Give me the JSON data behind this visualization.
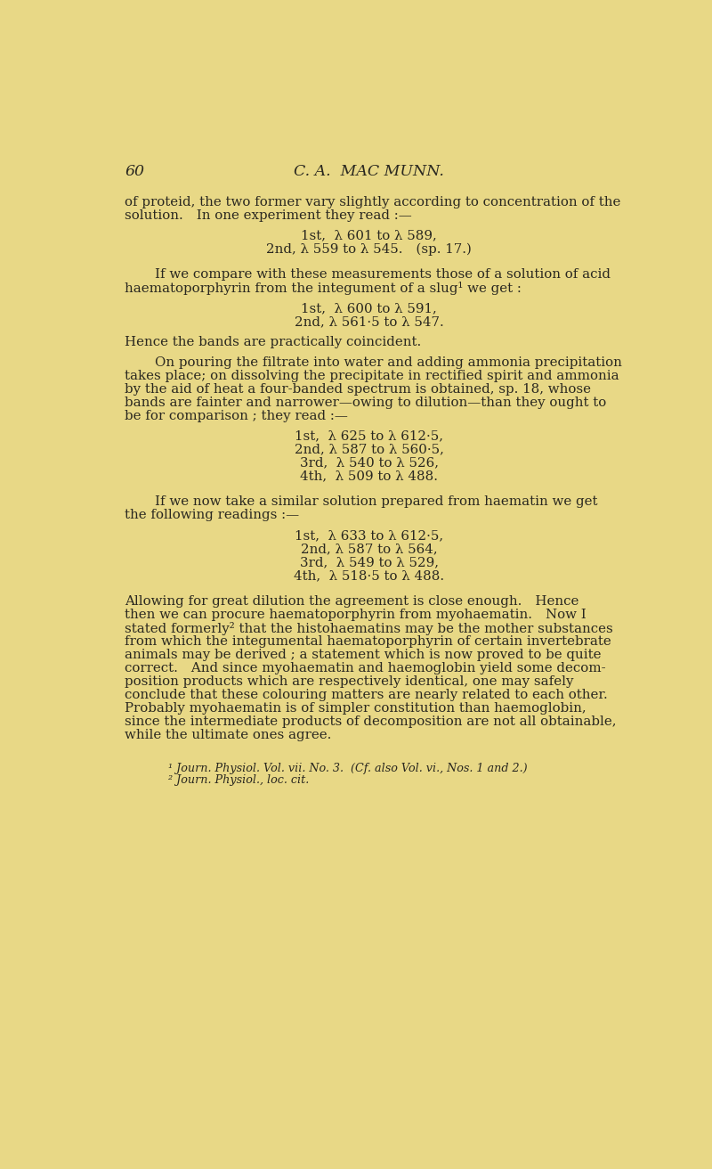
{
  "background_color": "#e8d886",
  "text_color": "#2a2820",
  "page_number": "60",
  "header": "C. A.  MAC MUNN.",
  "font_size_body": 10.8,
  "font_size_header": 12.5,
  "font_size_footnote": 9.2,
  "lines": [
    {
      "type": "header_gap"
    },
    {
      "type": "body_first",
      "text": "of proteid, the two former vary slightly according to concentration of the"
    },
    {
      "type": "body",
      "text": "solution. In one experiment they read :—"
    },
    {
      "type": "gap_small"
    },
    {
      "type": "centered",
      "text": "1st,  λ 601 to λ 589,"
    },
    {
      "type": "centered",
      "text": "2nd, λ 559 to λ 545. (sp. 17.)"
    },
    {
      "type": "gap_medium"
    },
    {
      "type": "body_indent",
      "text": "If we compare with these measurements those of a solution of acid"
    },
    {
      "type": "body",
      "text": "haematoporphyrin from the integument of a slug¹ we get :"
    },
    {
      "type": "gap_small"
    },
    {
      "type": "centered",
      "text": "1st,  λ 600 to λ 591,"
    },
    {
      "type": "centered",
      "text": "2nd, λ 561·5 to λ 547."
    },
    {
      "type": "gap_small"
    },
    {
      "type": "body",
      "text": "Hence the bands are practically coincident."
    },
    {
      "type": "gap_small"
    },
    {
      "type": "body_indent",
      "text": "On pouring the filtrate into water and adding ammonia precipitation"
    },
    {
      "type": "body",
      "text": "takes place; on dissolving the precipitate in rectified spirit and ammonia"
    },
    {
      "type": "body",
      "text": "by the aid of heat a four-banded spectrum is obtained, sp. 18, whose"
    },
    {
      "type": "body",
      "text": "bands are fainter and narrower—owing to dilution—than they ought to"
    },
    {
      "type": "body",
      "text": "be for comparison ; they read :—"
    },
    {
      "type": "gap_small"
    },
    {
      "type": "centered",
      "text": "1st,  λ 625 to λ 612·5,"
    },
    {
      "type": "centered",
      "text": "2nd, λ 587 to λ 560·5,"
    },
    {
      "type": "centered",
      "text": "3rd,  λ 540 to λ 526,"
    },
    {
      "type": "centered",
      "text": "4th,  λ 509 to λ 488."
    },
    {
      "type": "gap_medium"
    },
    {
      "type": "body_indent",
      "text": "If we now take a similar solution prepared from haematin we get"
    },
    {
      "type": "body",
      "text": "the following readings :—"
    },
    {
      "type": "gap_small"
    },
    {
      "type": "centered",
      "text": "1st,  λ 633 to λ 612·5,"
    },
    {
      "type": "centered",
      "text": "2nd, λ 587 to λ 564,"
    },
    {
      "type": "centered",
      "text": "3rd,  λ 549 to λ 529,"
    },
    {
      "type": "centered",
      "text": "4th,  λ 518·5 to λ 488."
    },
    {
      "type": "gap_medium"
    },
    {
      "type": "body",
      "text": "Allowing for great dilution the agreement is close enough. Hence"
    },
    {
      "type": "body",
      "text": "then we can procure haematoporphyrin from myohaematin. Now I"
    },
    {
      "type": "body",
      "text": "stated formerly² that the histohaematins may be the mother substances"
    },
    {
      "type": "body",
      "text": "from which the integumental haematoporphyrin of certain invertebrate"
    },
    {
      "type": "body",
      "text": "animals may be derived ; a statement which is now proved to be quite"
    },
    {
      "type": "body",
      "text": "correct. And since myohaematin and haemoglobin yield some decom-"
    },
    {
      "type": "body",
      "text": "position products which are respectively identical, one may safely"
    },
    {
      "type": "body",
      "text": "conclude that these colouring matters are nearly related to each other."
    },
    {
      "type": "body",
      "text": "Probably myohaematin is of simpler constitution than haemoglobin,"
    },
    {
      "type": "body",
      "text": "since the intermediate products of decomposition are not all obtainable,"
    },
    {
      "type": "body",
      "text": "while the ultimate ones agree."
    },
    {
      "type": "gap_large"
    },
    {
      "type": "footnote",
      "text": "¹ Journ. Physiol. Vol. vii. No. 3.  (Cf. also Vol. vi., Nos. 1 and 2.)"
    },
    {
      "type": "footnote",
      "text": "² Journ. Physiol., loc. cit."
    }
  ]
}
